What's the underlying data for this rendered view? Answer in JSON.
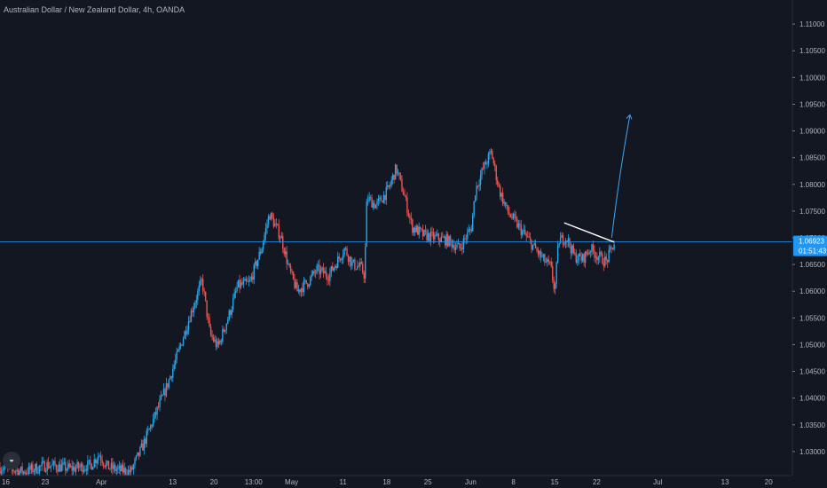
{
  "header": {
    "title": "Australian Dollar / New Zealand Dollar, 4h, OANDA"
  },
  "price_badge": {
    "price": "1.06923",
    "countdown": "01:51:43"
  },
  "logo": {
    "icon": "tradingview-logo-icon"
  },
  "colors": {
    "background": "#131722",
    "up": "#26a6e8",
    "down": "#ef5350",
    "price_line": "#2196f3",
    "trendline": "#ffffff",
    "arrow": "#42a5f5"
  },
  "chart_data": {
    "type": "candlestick",
    "title": "Australian Dollar / New Zealand Dollar, 4h, OANDA",
    "timeframe": "4h",
    "source": "OANDA",
    "ylim": [
      1.0255,
      1.1145
    ],
    "y_ticks": [
      "1.11000",
      "1.10500",
      "1.10000",
      "1.09500",
      "1.09000",
      "1.08500",
      "1.08000",
      "1.07500",
      "1.07000",
      "1.06500",
      "1.06000",
      "1.05500",
      "1.05000",
      "1.04500",
      "1.04000",
      "1.03500",
      "1.03000"
    ],
    "x_ticks": [
      {
        "label": "16",
        "pos": 0
      },
      {
        "label": "23",
        "pos": 0.057
      },
      {
        "label": "Apr",
        "pos": 0.128
      },
      {
        "label": "13",
        "pos": 0.218
      },
      {
        "label": "20",
        "pos": 0.27
      },
      {
        "label": "13:00",
        "pos": 0.32
      },
      {
        "label": "May",
        "pos": 0.368
      },
      {
        "label": "11",
        "pos": 0.433
      },
      {
        "label": "18",
        "pos": 0.488
      },
      {
        "label": "25",
        "pos": 0.54
      },
      {
        "label": "Jun",
        "pos": 0.594
      },
      {
        "label": "8",
        "pos": 0.648
      },
      {
        "label": "15",
        "pos": 0.7
      },
      {
        "label": "22",
        "pos": 0.753
      },
      {
        "label": "Jul",
        "pos": 0.83
      },
      {
        "label": "13",
        "pos": 0.915
      },
      {
        "label": "20",
        "pos": 0.97
      }
    ],
    "last_price": 1.06923,
    "path": [
      [
        0,
        1.027
      ],
      [
        0.03,
        1.0262
      ],
      [
        0.06,
        1.0275
      ],
      [
        0.09,
        1.0268
      ],
      [
        0.115,
        1.0275
      ],
      [
        0.125,
        1.0295
      ],
      [
        0.135,
        1.0272
      ],
      [
        0.15,
        1.0265
      ],
      [
        0.165,
        1.0262
      ],
      [
        0.18,
        1.031
      ],
      [
        0.195,
        1.0365
      ],
      [
        0.21,
        1.042
      ],
      [
        0.225,
        1.0485
      ],
      [
        0.24,
        1.0555
      ],
      [
        0.255,
        1.062
      ],
      [
        0.265,
        1.052
      ],
      [
        0.275,
        1.0495
      ],
      [
        0.29,
        1.056
      ],
      [
        0.3,
        1.061
      ],
      [
        0.315,
        1.0615
      ],
      [
        0.33,
        1.068
      ],
      [
        0.34,
        1.0745
      ],
      [
        0.355,
        1.07
      ],
      [
        0.365,
        1.064
      ],
      [
        0.375,
        1.06
      ],
      [
        0.39,
        1.062
      ],
      [
        0.4,
        1.064
      ],
      [
        0.415,
        1.063
      ],
      [
        0.425,
        1.0655
      ],
      [
        0.435,
        1.068
      ],
      [
        0.445,
        1.065
      ],
      [
        0.455,
        1.0645
      ],
      [
        0.46,
        1.063
      ],
      [
        0.463,
        1.0775
      ],
      [
        0.475,
        1.076
      ],
      [
        0.49,
        1.079
      ],
      [
        0.5,
        1.083
      ],
      [
        0.51,
        1.078
      ],
      [
        0.52,
        1.072
      ],
      [
        0.535,
        1.0705
      ],
      [
        0.55,
        1.07
      ],
      [
        0.565,
        1.0695
      ],
      [
        0.58,
        1.068
      ],
      [
        0.595,
        1.072
      ],
      [
        0.6,
        1.079
      ],
      [
        0.61,
        1.083
      ],
      [
        0.62,
        1.086
      ],
      [
        0.63,
        1.079
      ],
      [
        0.64,
        1.075
      ],
      [
        0.655,
        1.072
      ],
      [
        0.67,
        1.069
      ],
      [
        0.685,
        1.066
      ],
      [
        0.695,
        1.0645
      ],
      [
        0.7,
        1.06
      ],
      [
        0.705,
        1.0695
      ],
      [
        0.715,
        1.07
      ],
      [
        0.725,
        1.0665
      ],
      [
        0.735,
        1.066
      ],
      [
        0.745,
        1.068
      ],
      [
        0.755,
        1.0665
      ],
      [
        0.765,
        1.0655
      ],
      [
        0.775,
        1.069
      ]
    ],
    "trendline": [
      [
        0.712,
        1.0728
      ],
      [
        0.775,
        1.0692
      ]
    ],
    "projection_arrow": [
      [
        0.772,
        1.07
      ],
      [
        0.795,
        1.093
      ]
    ],
    "grid": false,
    "legend": "none"
  }
}
